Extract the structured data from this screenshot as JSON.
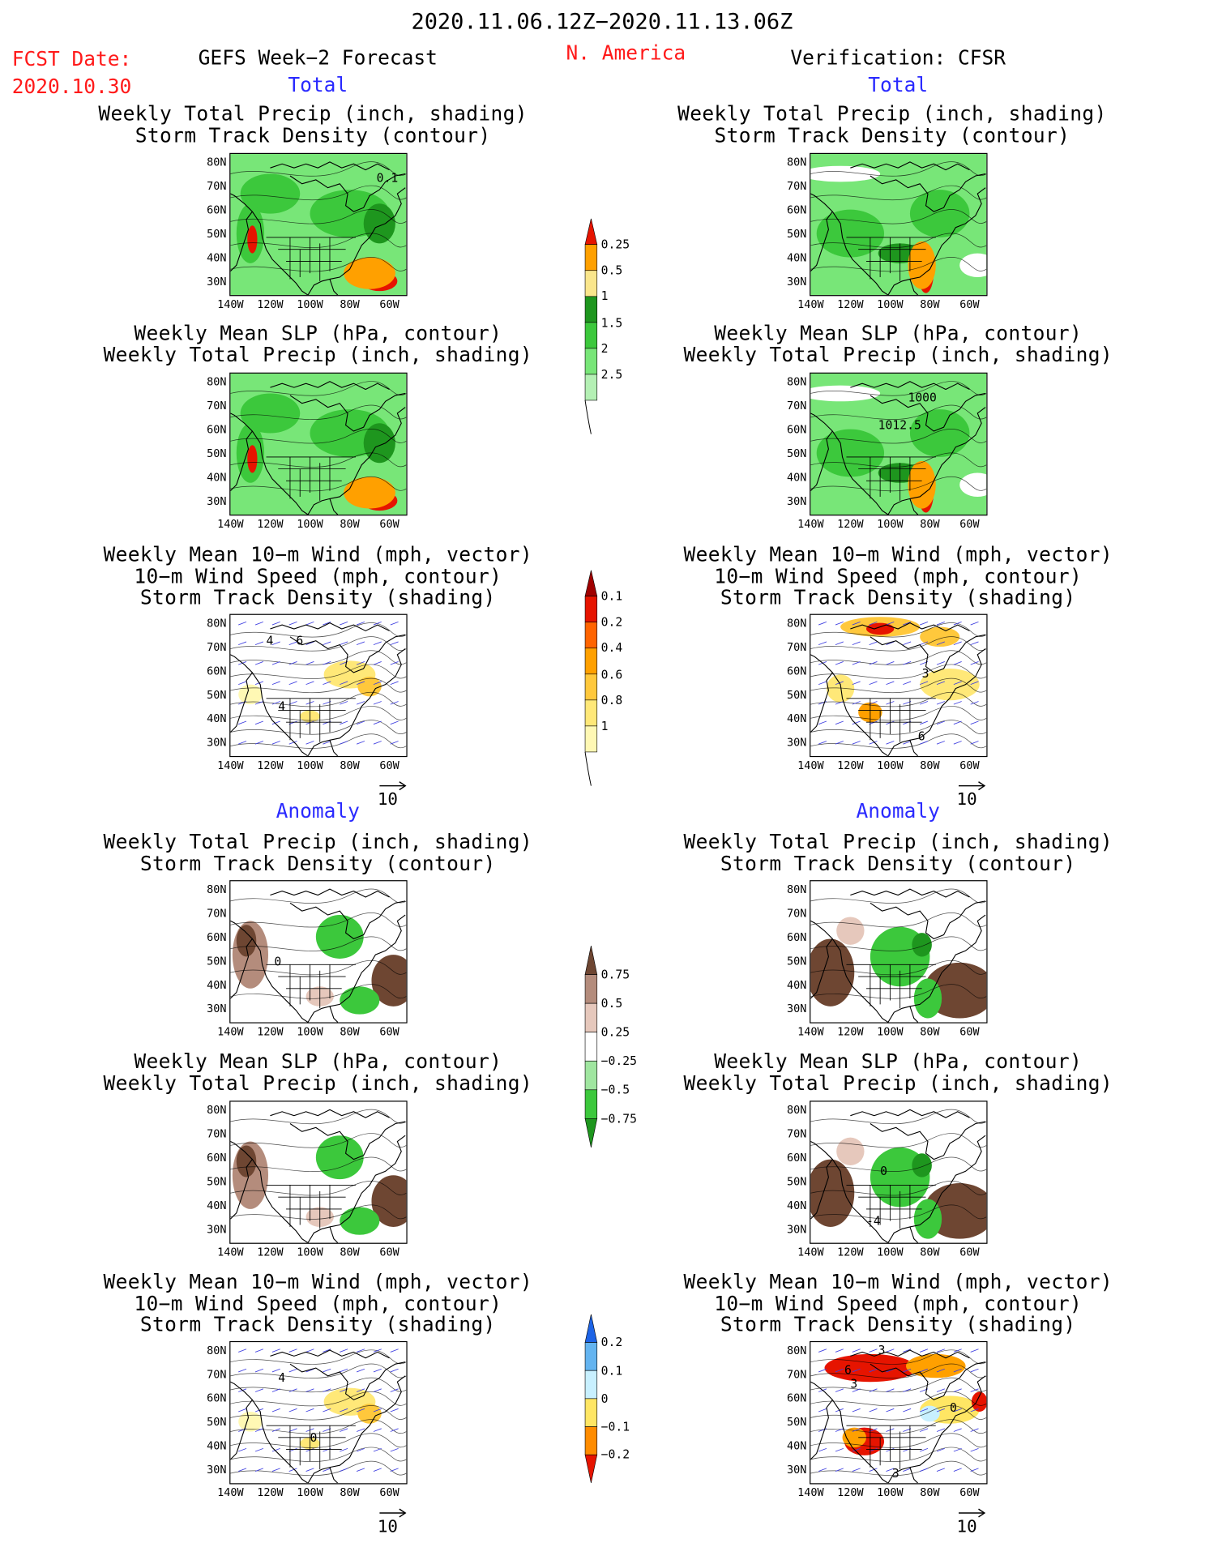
{
  "header": {
    "date_range": "2020.11.06.12Z−2020.11.13.06Z",
    "fcst_label": "FCST Date:",
    "fcst_date": "2020.10.30",
    "left_title": "GEFS Week−2 Forecast",
    "region": "N. America",
    "right_title": "Verification: CFSR"
  },
  "sections": {
    "total": "Total",
    "anomaly": "Anomaly"
  },
  "titles": {
    "precip_track": [
      "Weekly Total Precip (inch, shading)",
      "Storm Track Density (contour)"
    ],
    "slp_precip": [
      "Weekly Mean SLP (hPa, contour)",
      "Weekly Total Precip (inch, shading)"
    ],
    "wind_track": [
      "Weekly Mean 10−m Wind (mph, vector)",
      "10−m Wind Speed (mph, contour)",
      "Storm Track Density (shading)"
    ]
  },
  "axes": {
    "lat": [
      "80N",
      "70N",
      "60N",
      "50N",
      "40N",
      "30N"
    ],
    "lon": [
      "140W",
      "120W",
      "100W",
      "80W",
      "60W"
    ]
  },
  "vector_ref": "10",
  "map_labels": {
    "r1l": "0.1",
    "r2r_a": "1000",
    "r2r_b": "1012.5",
    "r3l_a": "4",
    "r3l_b": "6",
    "r3l_c": "4",
    "r3r_a": "3",
    "r3r_b": "6",
    "r4l": "0",
    "r5r_a": "0",
    "r5r_b": "-4",
    "r6l_a": "4",
    "r6l_b": "0",
    "r6r_a": "3",
    "r6r_b": "6",
    "r6r_c": "3",
    "r6r_d": "0",
    "r6r_e": "3"
  },
  "colorbars": {
    "precip_total": {
      "labels": [
        "0.25",
        "0.5",
        "1",
        "1.5",
        "2",
        "2.5"
      ],
      "colors": [
        "#b4f0b4",
        "#78e678",
        "#3cc83c",
        "#1e961e",
        "#fae68c",
        "#ffa000",
        "#e61400"
      ]
    },
    "track_total": {
      "labels": [
        "0.1",
        "0.2",
        "0.4",
        "0.6",
        "0.8",
        "1"
      ],
      "colors": [
        "#fff8b4",
        "#ffe878",
        "#ffc83c",
        "#ffa000",
        "#ff6400",
        "#e61400",
        "#a00000"
      ]
    },
    "precip_anom": {
      "labels": [
        "0.75",
        "0.5",
        "0.25",
        "−0.25",
        "−0.5",
        "−0.75"
      ],
      "colors": [
        "#1e961e",
        "#3cc83c",
        "#a0e6a0",
        "#ffffff",
        "#e6c8bc",
        "#b48c7c",
        "#6e4632"
      ]
    },
    "track_anom": {
      "labels": [
        "0.2",
        "0.1",
        "0",
        "−0.1",
        "−0.2"
      ],
      "colors": [
        "#e61400",
        "#ff8c00",
        "#ffe664",
        "#c8f0ff",
        "#64b4f0",
        "#1e64e6"
      ]
    }
  }
}
